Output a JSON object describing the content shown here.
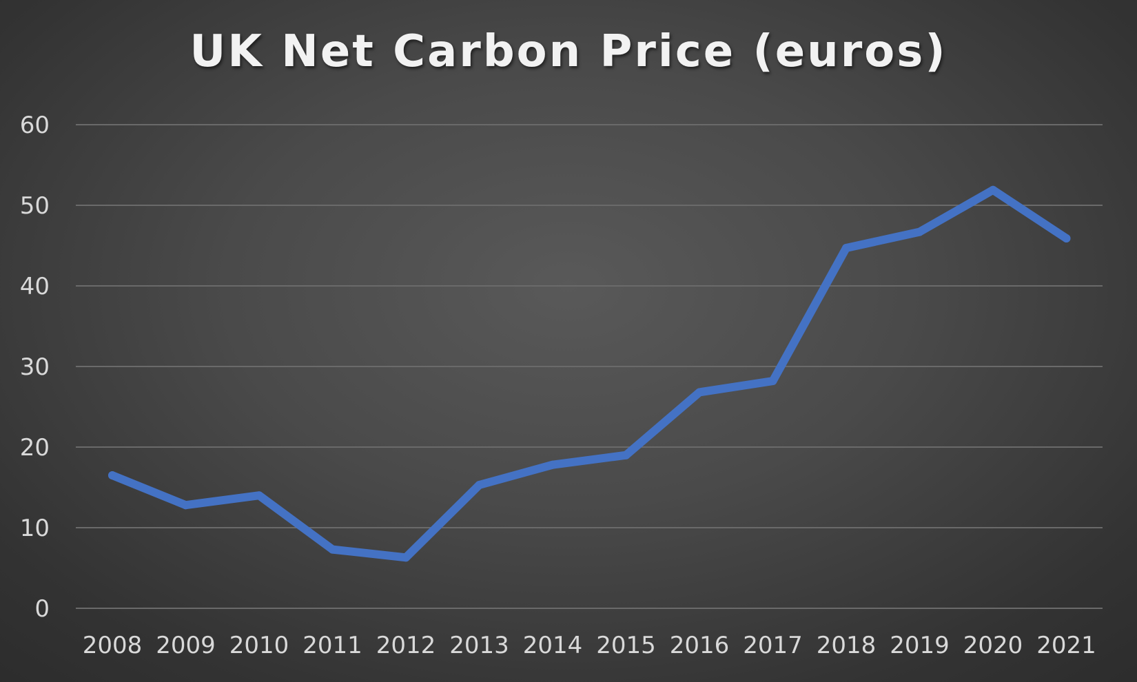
{
  "chart_data": {
    "type": "line",
    "title": "UK Net Carbon Price (euros)",
    "xlabel": "",
    "ylabel": "",
    "categories": [
      "2008",
      "2009",
      "2010",
      "2011",
      "2012",
      "2013",
      "2014",
      "2015",
      "2016",
      "2017",
      "2018",
      "2019",
      "2020",
      "2021"
    ],
    "series": [
      {
        "values": [
          16.5,
          12.8,
          14.0,
          7.3,
          6.3,
          15.3,
          17.8,
          19.0,
          26.8,
          28.2,
          44.7,
          46.7,
          51.9,
          45.9
        ]
      }
    ],
    "ylim": [
      0,
      60
    ],
    "yticks": [
      "0",
      "10",
      "20",
      "30",
      "40",
      "50",
      "60"
    ],
    "grid": true,
    "legend": "none",
    "colors": {
      "series": "#4472c4",
      "background": "#4a4a4a",
      "gridline": "#6a6a6a",
      "text": "#d9d9d9",
      "title": "#f2f2f2"
    }
  }
}
